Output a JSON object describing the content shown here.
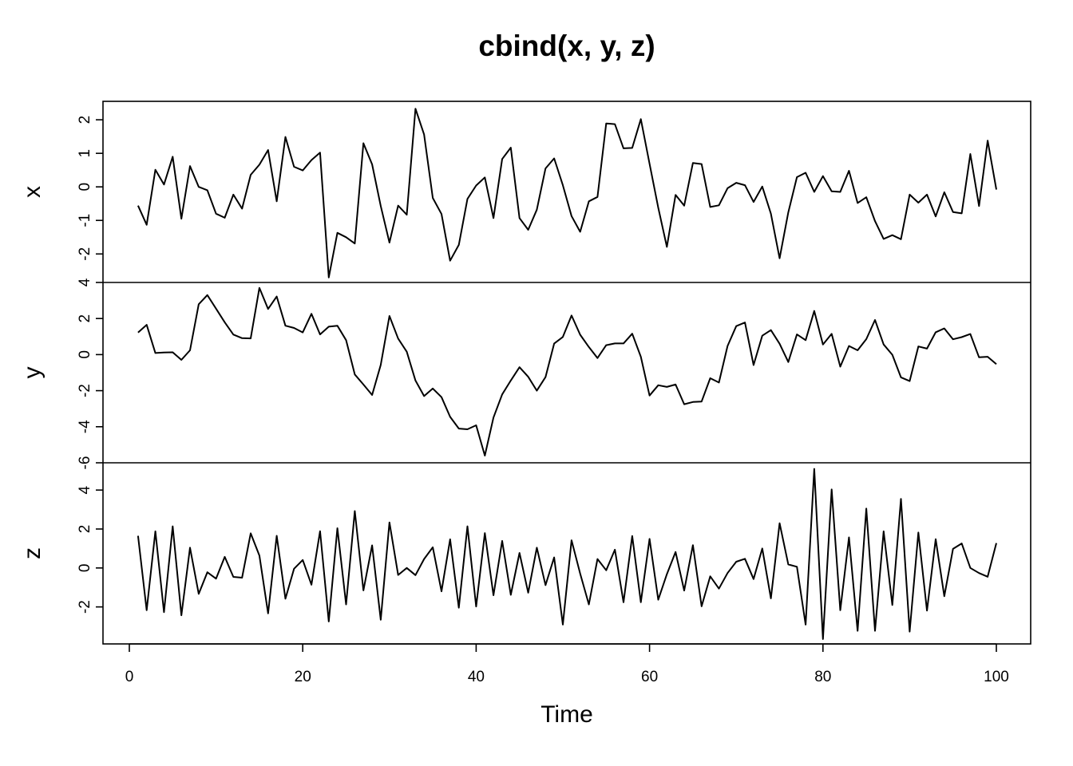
{
  "chart_data": {
    "type": "line",
    "title": "cbind(x, y, z)",
    "xlabel": "Time",
    "xlim": [
      1,
      100
    ],
    "x_ticks": [
      0,
      20,
      40,
      60,
      80,
      100
    ],
    "grid": false,
    "panels": [
      {
        "name": "x",
        "ylabel": "x",
        "ylim": [
          -2.85,
          2.55
        ],
        "y_ticks": [
          -2,
          -1,
          0,
          1,
          2
        ],
        "values": [
          -0.56,
          -1.13,
          0.51,
          0.07,
          0.9,
          -0.95,
          0.62,
          -0.0,
          -0.1,
          -0.8,
          -0.92,
          -0.23,
          -0.65,
          0.36,
          0.66,
          1.1,
          -0.43,
          1.49,
          0.6,
          0.49,
          0.8,
          1.02,
          -2.7,
          -1.37,
          -1.5,
          -1.69,
          1.3,
          0.67,
          -0.57,
          -1.66,
          -0.56,
          -0.83,
          2.33,
          1.56,
          -0.33,
          -0.81,
          -2.2,
          -1.73,
          -0.36,
          0.04,
          0.28,
          -0.93,
          0.83,
          1.17,
          -0.93,
          -1.28,
          -0.68,
          0.55,
          0.85,
          0.05,
          -0.87,
          -1.34,
          -0.43,
          -0.3,
          1.89,
          1.87,
          1.15,
          1.16,
          2.02,
          0.69,
          -0.62,
          -1.79,
          -0.24,
          -0.56,
          0.71,
          0.68,
          -0.6,
          -0.55,
          -0.04,
          0.12,
          0.05,
          -0.45,
          0.01,
          -0.8,
          -2.13,
          -0.76,
          0.29,
          0.42,
          -0.15,
          0.32,
          -0.13,
          -0.15,
          0.48,
          -0.48,
          -0.31,
          -1.02,
          -1.55,
          -1.44,
          -1.56,
          -0.23,
          -0.47,
          -0.23,
          -0.88,
          -0.16,
          -0.75,
          -0.79,
          0.98,
          -0.57,
          1.38,
          -0.08
        ]
      },
      {
        "name": "y",
        "ylabel": "y",
        "ylim": [
          -6,
          4
        ],
        "y_ticks": [
          -6,
          -4,
          -2,
          0,
          2,
          4
        ],
        "values": [
          1.22,
          1.65,
          0.09,
          0.12,
          0.13,
          -0.29,
          0.24,
          2.79,
          3.3,
          2.55,
          1.79,
          1.11,
          0.91,
          0.9,
          3.7,
          2.53,
          3.22,
          1.6,
          1.48,
          1.23,
          2.26,
          1.12,
          1.55,
          1.6,
          0.8,
          -1.1,
          -1.66,
          -2.24,
          -0.57,
          2.14,
          0.89,
          0.16,
          -1.44,
          -2.3,
          -1.88,
          -2.36,
          -3.45,
          -4.1,
          -4.14,
          -3.92,
          -5.6,
          -3.49,
          -2.21,
          -1.44,
          -0.7,
          -1.23,
          -2.0,
          -1.25,
          0.61,
          0.98,
          2.17,
          1.1,
          0.42,
          -0.19,
          0.52,
          0.62,
          0.62,
          1.16,
          -0.12,
          -2.27,
          -1.7,
          -1.79,
          -1.66,
          -2.75,
          -2.63,
          -2.6,
          -1.31,
          -1.55,
          0.48,
          1.58,
          1.78,
          -0.58,
          1.05,
          1.36,
          0.6,
          -0.41,
          1.12,
          0.8,
          2.42,
          0.56,
          1.15,
          -0.67,
          0.48,
          0.24,
          0.86,
          1.92,
          0.56,
          -0.01,
          -1.26,
          -1.47,
          0.45,
          0.33,
          1.24,
          1.45,
          0.85,
          0.97,
          1.14,
          -0.15,
          -0.12,
          -0.53
        ]
      },
      {
        "name": "z",
        "ylabel": "z",
        "ylim": [
          -3.9,
          5.4
        ],
        "y_ticks": [
          -2,
          0,
          2,
          4
        ],
        "values": [
          1.65,
          -2.17,
          1.88,
          -2.27,
          2.14,
          -2.43,
          1.04,
          -1.33,
          -0.22,
          -0.55,
          0.57,
          -0.46,
          -0.5,
          1.78,
          0.64,
          -2.33,
          1.65,
          -1.58,
          -0.04,
          0.41,
          -0.86,
          1.89,
          -2.75,
          2.04,
          -1.87,
          2.92,
          -1.15,
          1.16,
          -2.66,
          2.34,
          -0.36,
          0.0,
          -0.37,
          0.46,
          1.06,
          -1.2,
          1.47,
          -2.04,
          2.14,
          -1.98,
          1.79,
          -1.4,
          1.39,
          -1.38,
          0.77,
          -1.27,
          1.04,
          -0.88,
          0.54,
          -2.91,
          1.42,
          -0.29,
          -1.87,
          0.46,
          -0.12,
          0.94,
          -1.76,
          1.64,
          -1.76,
          1.49,
          -1.63,
          -0.32,
          0.82,
          -1.16,
          1.17,
          -1.97,
          -0.43,
          -1.06,
          -0.26,
          0.32,
          0.47,
          -0.57,
          1.0,
          -1.56,
          2.3,
          0.18,
          0.06,
          -2.91,
          5.09,
          -3.65,
          4.03,
          -2.17,
          1.57,
          -3.23,
          3.05,
          -3.23,
          1.88,
          -1.9,
          3.55,
          -3.27,
          1.82,
          -2.19,
          1.48,
          -1.45,
          0.98,
          1.26,
          -0.0,
          -0.26,
          -0.45,
          1.28
        ]
      }
    ]
  }
}
